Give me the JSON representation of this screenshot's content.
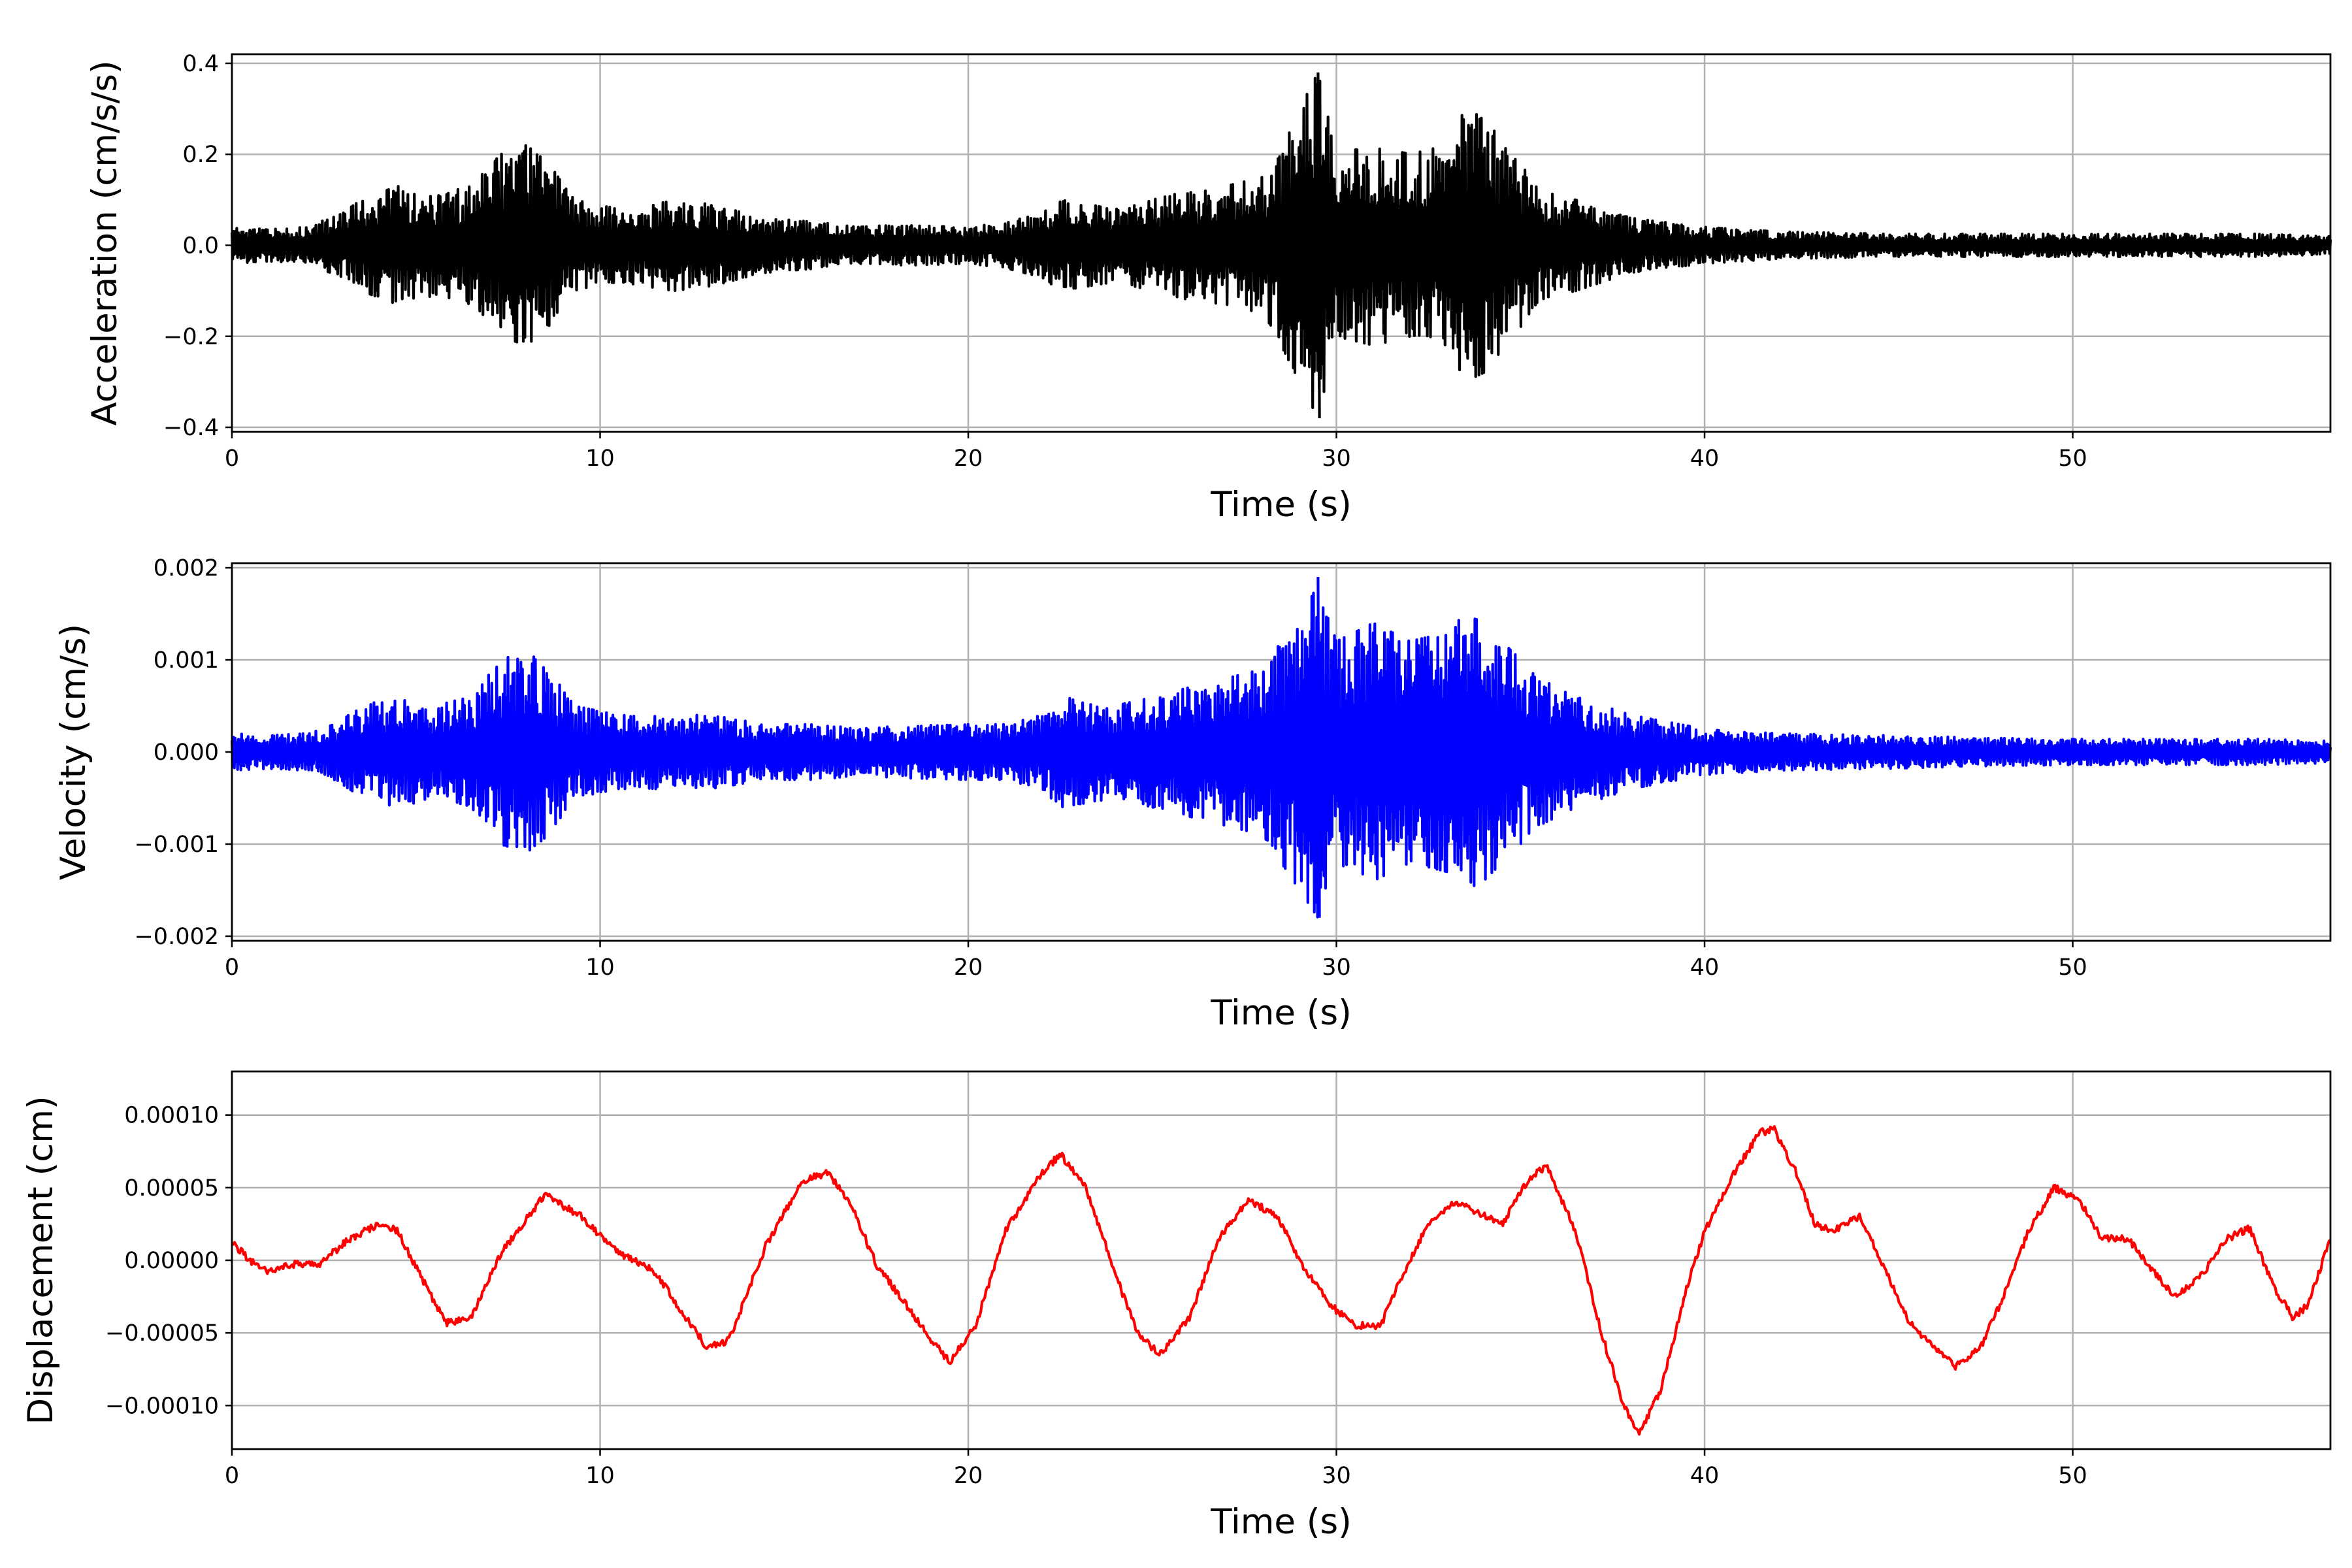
{
  "chart_data": [
    {
      "type": "line",
      "title": "",
      "xlabel": "Time (s)",
      "ylabel": "Acceleration (cm/s/s)",
      "xlim": [
        0,
        57
      ],
      "ylim": [
        -0.41,
        0.42
      ],
      "xticks": [
        0,
        10,
        20,
        30,
        40,
        50
      ],
      "xtick_labels": [
        "0",
        "10",
        "20",
        "30",
        "40",
        "50"
      ],
      "yticks": [
        -0.4,
        -0.2,
        0.0,
        0.2,
        0.4
      ],
      "ytick_labels": [
        "−0.4",
        "−0.2",
        "0.0",
        "0.2",
        "0.4"
      ],
      "grid": true,
      "series": [
        {
          "color": "#000000",
          "signal": "oscillatory",
          "x": [
            0,
            1,
            2,
            3,
            3.5,
            4.5,
            5.5,
            6.5,
            7.3,
            8,
            8.6,
            9.3,
            10.5,
            12,
            13,
            14.5,
            16,
            17,
            18,
            20,
            21,
            22,
            22.5,
            24,
            25,
            26,
            27,
            28,
            28.5,
            29.5,
            30,
            31,
            32,
            33,
            33.5,
            34,
            35,
            35.5,
            36.5,
            38,
            40,
            42,
            45,
            48,
            50,
            53,
            55,
            57
          ],
          "envelope": [
            0.04,
            0.035,
            0.04,
            0.07,
            0.1,
            0.13,
            0.11,
            0.13,
            0.2,
            0.22,
            0.18,
            0.1,
            0.08,
            0.1,
            0.09,
            0.06,
            0.05,
            0.04,
            0.045,
            0.04,
            0.05,
            0.07,
            0.1,
            0.08,
            0.1,
            0.12,
            0.13,
            0.15,
            0.22,
            0.38,
            0.2,
            0.22,
            0.2,
            0.22,
            0.3,
            0.28,
            0.18,
            0.12,
            0.1,
            0.06,
            0.04,
            0.03,
            0.025,
            0.025,
            0.025,
            0.025,
            0.025,
            0.02
          ],
          "peak_max": 0.38,
          "peak_min": -0.38
        }
      ]
    },
    {
      "type": "line",
      "title": "",
      "xlabel": "Time (s)",
      "ylabel": "Velocity (cm/s)",
      "xlim": [
        0,
        57
      ],
      "ylim": [
        -0.00205,
        0.00205
      ],
      "xticks": [
        0,
        10,
        20,
        30,
        40,
        50
      ],
      "xtick_labels": [
        "0",
        "10",
        "20",
        "30",
        "40",
        "50"
      ],
      "yticks": [
        -0.002,
        -0.001,
        0.0,
        0.001,
        0.002
      ],
      "ytick_labels": [
        "−0.002",
        "−0.001",
        "0.000",
        "0.001",
        "0.002"
      ],
      "grid": true,
      "series": [
        {
          "color": "#0000ff",
          "signal": "oscillatory",
          "x": [
            0,
            1,
            2,
            3,
            3.5,
            4.5,
            5.5,
            6.5,
            7.3,
            8,
            8.6,
            9.3,
            10.5,
            12,
            13,
            14.5,
            16,
            17,
            18,
            20,
            21,
            22,
            22.5,
            24,
            25,
            26,
            27,
            28,
            28.5,
            29.5,
            30,
            31,
            32,
            33,
            33.5,
            34,
            35,
            35.5,
            36.5,
            38,
            40,
            42,
            45,
            48,
            50,
            53,
            55,
            57
          ],
          "envelope": [
            0.0002,
            0.00018,
            0.0002,
            0.00035,
            0.0005,
            0.0006,
            0.0005,
            0.0006,
            0.001,
            0.0011,
            0.0009,
            0.0005,
            0.0004,
            0.0004,
            0.0004,
            0.0003,
            0.0003,
            0.00025,
            0.00028,
            0.0003,
            0.0003,
            0.0004,
            0.0006,
            0.0005,
            0.0006,
            0.0007,
            0.0008,
            0.0009,
            0.0012,
            0.0018,
            0.0012,
            0.0014,
            0.0012,
            0.0013,
            0.0015,
            0.0014,
            0.001,
            0.0008,
            0.0006,
            0.0004,
            0.00025,
            0.0002,
            0.00018,
            0.00015,
            0.00014,
            0.00014,
            0.00014,
            0.00012
          ],
          "peak_max": 0.0019,
          "peak_min": -0.0018
        }
      ]
    },
    {
      "type": "line",
      "title": "",
      "xlabel": "Time (s)",
      "ylabel": "Displacement (cm)",
      "xlim": [
        0,
        57
      ],
      "ylim": [
        -0.00013,
        0.00013
      ],
      "xticks": [
        0,
        10,
        20,
        30,
        40,
        50
      ],
      "xtick_labels": [
        "0",
        "10",
        "20",
        "30",
        "40",
        "50"
      ],
      "yticks": [
        -0.0001,
        -5e-05,
        0.0,
        5e-05,
        0.0001
      ],
      "ytick_labels": [
        "−0.00010",
        "−0.00005",
        "0.00000",
        "0.00005",
        "0.00010"
      ],
      "grid": true,
      "series": [
        {
          "color": "#ff0000",
          "signal": "smooth",
          "x": [
            0,
            0.5,
            1.0,
            1.8,
            2.3,
            3.2,
            4.0,
            4.5,
            5.0,
            5.8,
            6.5,
            7.3,
            8.5,
            9.5,
            10.5,
            11.5,
            12.2,
            12.9,
            13.5,
            14.5,
            15.5,
            16.2,
            16.8,
            17.5,
            18.3,
            19.0,
            19.5,
            20.2,
            21.0,
            22.0,
            22.5,
            23.2,
            24.0,
            24.6,
            25.2,
            26.0,
            26.8,
            27.6,
            28.4,
            29.0,
            29.8,
            30.5,
            31.2,
            31.8,
            32.5,
            33.2,
            34.5,
            35.2,
            35.7,
            36.5,
            37.2,
            37.8,
            38.2,
            38.8,
            39.5,
            40.0,
            40.8,
            41.5,
            41.9,
            42.5,
            43.0,
            43.5,
            44.2,
            44.8,
            45.5,
            46.2,
            46.8,
            47.5,
            48.2,
            48.8,
            49.5,
            50.2,
            50.8,
            51.5,
            52.2,
            52.8,
            53.5,
            54.2,
            54.8,
            55.5,
            56.0,
            56.4,
            57.0
          ],
          "y": [
            1.2e-05,
            0.0,
            -8e-06,
            -2e-06,
            -4e-06,
            1.5e-05,
            2.5e-05,
            2e-05,
            -5e-06,
            -4.3e-05,
            -4e-05,
            5e-06,
            4.5e-05,
            3e-05,
            5e-06,
            -8e-06,
            -3.5e-05,
            -6e-05,
            -5.5e-05,
            1e-05,
            5.5e-05,
            6e-05,
            4e-05,
            -3e-06,
            -3e-05,
            -5.5e-05,
            -7e-05,
            -4.5e-05,
            2e-05,
            6e-05,
            7.3e-05,
            5e-05,
            -1e-05,
            -5e-05,
            -6.5e-05,
            -4e-05,
            1.5e-05,
            4.2e-05,
            3e-05,
            0.0,
            -3e-05,
            -4.5e-05,
            -4.5e-05,
            -1e-05,
            2.5e-05,
            4e-05,
            2.5e-05,
            5.5e-05,
            6.5e-05,
            2e-05,
            -5e-05,
            -0.0001,
            -0.00012,
            -9e-05,
            -2e-05,
            2e-05,
            6e-05,
            8.8e-05,
            9e-05,
            6e-05,
            2.5e-05,
            2e-05,
            3e-05,
            0.0,
            -4e-05,
            -6e-05,
            -7.3e-05,
            -6e-05,
            -2e-05,
            2e-05,
            5e-05,
            4e-05,
            1.5e-05,
            1.5e-05,
            -8e-06,
            -2.5e-05,
            -1e-05,
            1.5e-05,
            2.2e-05,
            -2e-05,
            -4e-05,
            -3e-05,
            1.5e-05
          ]
        }
      ]
    }
  ]
}
